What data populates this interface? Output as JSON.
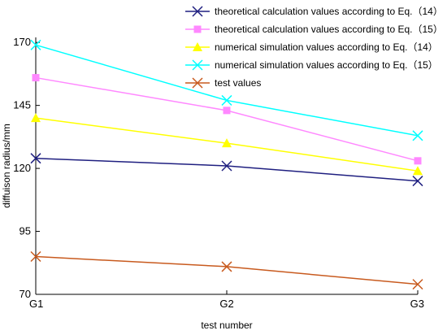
{
  "chart_data": {
    "type": "line",
    "title": "",
    "xlabel": "test number",
    "ylabel": "diffuison radius/mm",
    "categories": [
      "G1",
      "G2",
      "G3"
    ],
    "ylim": [
      70,
      172
    ],
    "yticks": [
      "70",
      "95",
      "120",
      "145",
      "170"
    ],
    "grid": false,
    "legend_position": "top-right",
    "series": [
      {
        "name": "theoretical calculation values according to Eq.（14）",
        "values": [
          124,
          121,
          115
        ],
        "color": "#1f1f80",
        "marker": "x"
      },
      {
        "name": "theoretical calculation values according to Eq.（15）",
        "values": [
          156,
          143,
          123
        ],
        "color": "#ff88ff",
        "marker": "square"
      },
      {
        "name": "numerical simulation values according to Eq.（14）",
        "values": [
          140,
          130,
          119
        ],
        "color": "#ffff00",
        "marker": "triangle"
      },
      {
        "name": "numerical simulation values according to Eq.（15）",
        "values": [
          169,
          147,
          133
        ],
        "color": "#00ffff",
        "marker": "x"
      },
      {
        "name": "test values",
        "values": [
          85,
          81,
          74
        ],
        "color": "#c85a1e",
        "marker": "x"
      }
    ]
  }
}
